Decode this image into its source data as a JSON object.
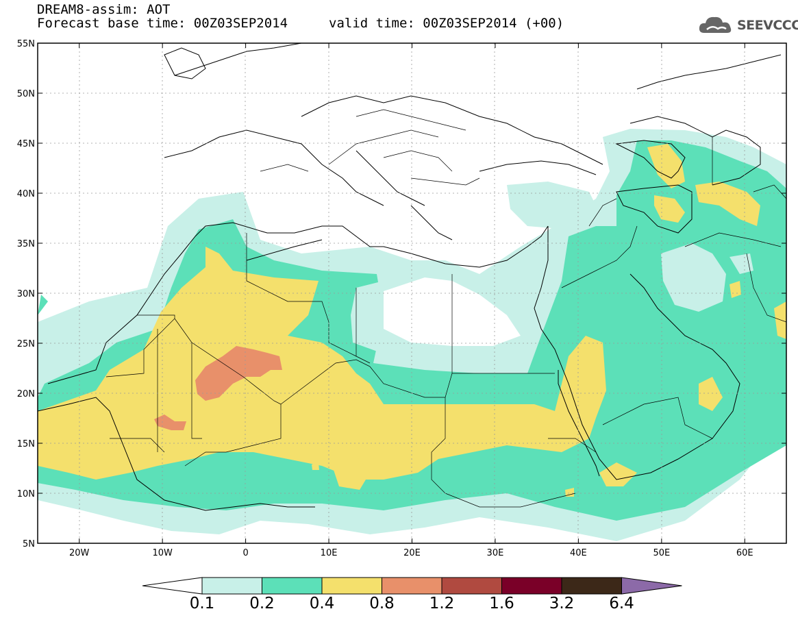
{
  "header": {
    "line1": "DREAM8-assim: AOT",
    "base": "Forecast base time: 00Z03SEP2014",
    "valid": "valid time: 00Z03SEP2014 (+00)"
  },
  "logo": {
    "text": "SEEVCCC"
  },
  "map": {
    "lon_range": [
      -25,
      65
    ],
    "lat_range": [
      5,
      55
    ],
    "lon_labels": [
      "20W",
      "10W",
      "0",
      "10E",
      "20E",
      "30E",
      "40E",
      "50E",
      "60E"
    ],
    "lat_labels": [
      "55N",
      "50N",
      "45N",
      "40N",
      "35N",
      "30N",
      "25N",
      "20N",
      "15N",
      "10N",
      "5N"
    ]
  },
  "colorbar": {
    "labels": [
      "0.1",
      "0.2",
      "0.4",
      "0.8",
      "1.2",
      "1.6",
      "3.2",
      "6.4"
    ],
    "colors": [
      "#ffffff",
      "#c8f0e8",
      "#5ce0b8",
      "#f4e06c",
      "#e8906a",
      "#b04a40",
      "#7a0028",
      "#3c2818",
      "#8c6aa8"
    ]
  },
  "colors": {
    "c1": "#c8f0e8",
    "c2": "#5ce0b8",
    "c3": "#f4e06c",
    "c4": "#e8906a"
  }
}
